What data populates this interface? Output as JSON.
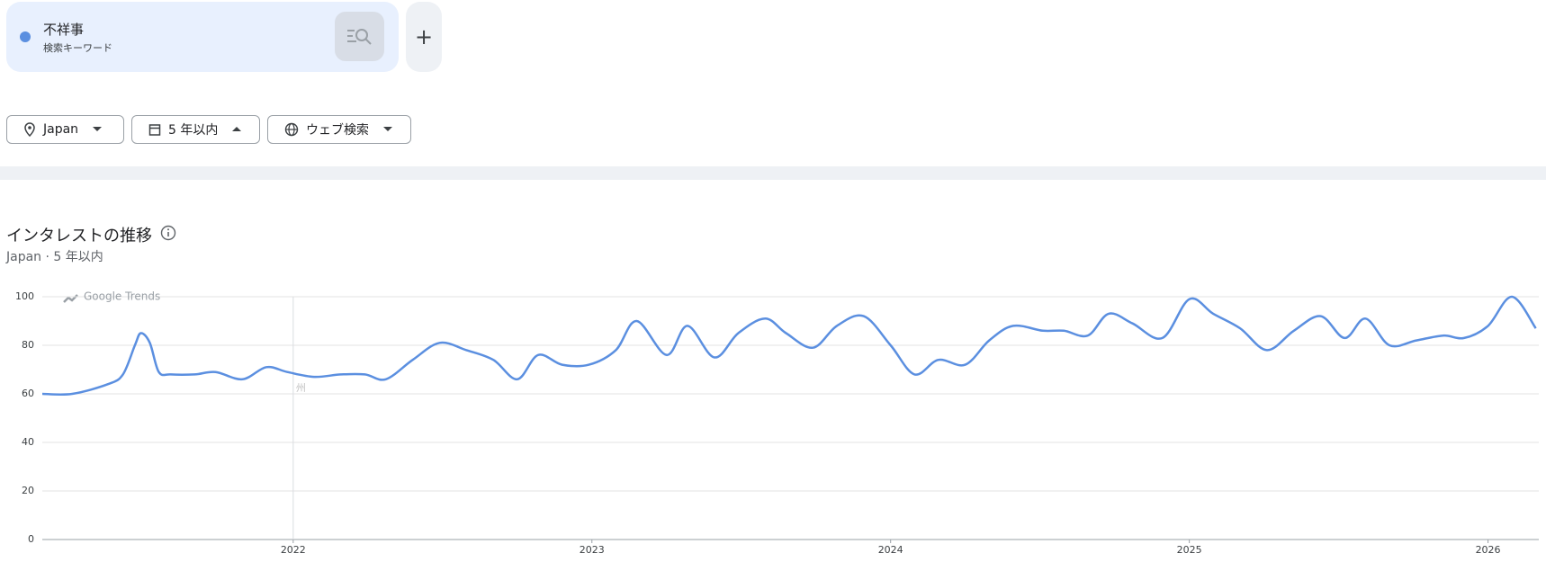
{
  "search": {
    "label": "検索キーワード",
    "add": "+"
  },
  "filters": {
    "region": "Japan",
    "period": "5 年以内",
    "property": "ウェブ検索"
  },
  "chart_data": {
    "type": "line",
    "title": "インタレストの推移",
    "subtitle": "Japan · 5 年以内",
    "watermark": "Google Trends",
    "annotation": "州",
    "x": [
      2021.16,
      2021.26,
      2021.38,
      2021.43,
      2021.47,
      2021.49,
      2021.52,
      2021.55,
      2021.59,
      2021.67,
      2021.74,
      2021.83,
      2021.91,
      2021.98,
      2022.07,
      2022.16,
      2022.24,
      2022.31,
      2022.4,
      2022.49,
      2022.58,
      2022.67,
      2022.75,
      2022.82,
      2022.9,
      2022.99,
      2023.08,
      2023.15,
      2023.25,
      2023.32,
      2023.41,
      2023.49,
      2023.58,
      2023.65,
      2023.74,
      2023.82,
      2023.91,
      2024.0,
      2024.08,
      2024.16,
      2024.25,
      2024.33,
      2024.41,
      2024.51,
      2024.58,
      2024.66,
      2024.73,
      2024.81,
      2024.91,
      2025.0,
      2025.08,
      2025.17,
      2025.26,
      2025.35,
      2025.44,
      2025.52,
      2025.59,
      2025.67,
      2025.76,
      2025.85,
      2025.92,
      2026.0,
      2026.08,
      2026.16
    ],
    "series": [
      {
        "name": "不祥事",
        "color": "#5b8fe0",
        "values": [
          60,
          60,
          64,
          68,
          80,
          85,
          81,
          69,
          68,
          68,
          69,
          66,
          71,
          69,
          67,
          68,
          68,
          66,
          74,
          81,
          78,
          74,
          66,
          76,
          72,
          72,
          78,
          90,
          76,
          88,
          75,
          85,
          91,
          85,
          79,
          88,
          92,
          80,
          68,
          74,
          72,
          82,
          88,
          86,
          86,
          84,
          93,
          89,
          83,
          99,
          93,
          87,
          78,
          86,
          92,
          83,
          91,
          80,
          82,
          84,
          83,
          88,
          100,
          87
        ]
      }
    ],
    "xlim": [
      2021.16,
      2026.17
    ],
    "xticks": [
      2022,
      2023,
      2024,
      2025,
      2026
    ],
    "ylim": [
      0,
      100
    ],
    "yticks": [
      0,
      20,
      40,
      60,
      80,
      100
    ],
    "grid": true
  }
}
